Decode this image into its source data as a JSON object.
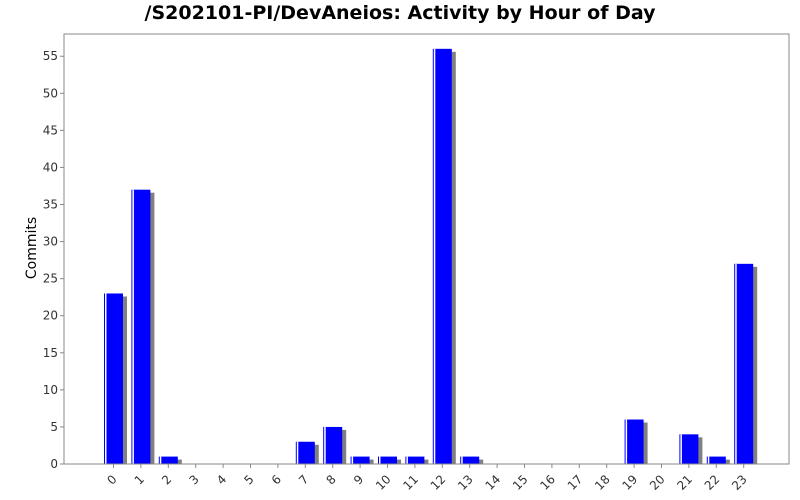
{
  "chart_data": {
    "type": "bar",
    "title": "/S202101-PI/DevAneios: Activity by Hour of Day",
    "xlabel": "",
    "ylabel": "Commits",
    "categories": [
      "0",
      "1",
      "2",
      "3",
      "4",
      "5",
      "6",
      "7",
      "8",
      "9",
      "10",
      "11",
      "12",
      "13",
      "14",
      "15",
      "16",
      "17",
      "18",
      "19",
      "20",
      "21",
      "22",
      "23"
    ],
    "values": [
      23,
      37,
      1,
      0,
      0,
      0,
      0,
      3,
      5,
      1,
      1,
      1,
      56,
      1,
      0,
      0,
      0,
      0,
      0,
      6,
      0,
      4,
      1,
      27
    ],
    "ylim": [
      0,
      58
    ],
    "yticks": [
      0,
      5,
      10,
      15,
      20,
      25,
      30,
      35,
      40,
      45,
      50,
      55
    ],
    "grid": false,
    "colors": {
      "bar": "#0000ff",
      "shadow": "#808080",
      "axis": "#888888"
    }
  }
}
